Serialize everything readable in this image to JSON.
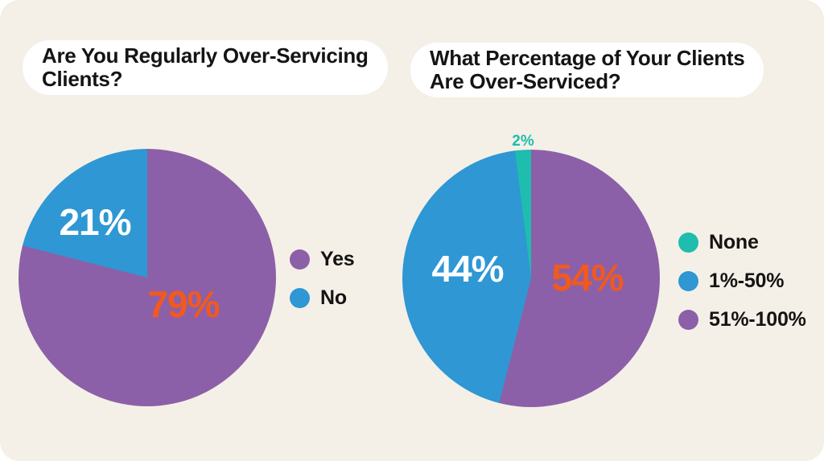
{
  "theme": {
    "canvas_background": "#ffffff",
    "card_background": "#f4f0e7",
    "title_pill_background": "#ffffff",
    "text_color": "#161314"
  },
  "chart_data": [
    {
      "type": "pie",
      "title": "Are You Regularly Over-Servicing Clients?",
      "title_lines": [
        "Are You Regularly Over-Servicing",
        "Clients?"
      ],
      "categories": [
        "Yes",
        "No"
      ],
      "values": [
        79,
        21
      ],
      "colors": [
        "#8c60a8",
        "#2e97d4"
      ],
      "slice_labels": [
        "79%",
        "21%"
      ],
      "slice_label_colors": [
        "#f2591d",
        "#ffffff"
      ],
      "start_angle_deg": 0,
      "direction": "clockwise",
      "legend_position": "right",
      "legend": [
        {
          "label": "Yes",
          "color": "#8c60a8"
        },
        {
          "label": "No",
          "color": "#2e97d4"
        }
      ]
    },
    {
      "type": "pie",
      "title": "What Percentage of Your Clients Are Over-Serviced?",
      "title_lines": [
        "What Percentage of Your Clients",
        "Are Over-Serviced?"
      ],
      "categories": [
        "51%-100%",
        "1%-50%",
        "None"
      ],
      "values": [
        54,
        44,
        2
      ],
      "colors": [
        "#8c60a8",
        "#2e97d4",
        "#1ebdad"
      ],
      "slice_labels": [
        "54%",
        "44%",
        "2%"
      ],
      "slice_label_colors": [
        "#f2591d",
        "#ffffff",
        "#1ebdad"
      ],
      "start_angle_deg": 0,
      "direction": "clockwise",
      "legend_position": "right",
      "legend": [
        {
          "label": "None",
          "color": "#1ebdad"
        },
        {
          "label": "1%-50%",
          "color": "#2e97d4"
        },
        {
          "label": "51%-100%",
          "color": "#8c60a8"
        }
      ]
    }
  ]
}
